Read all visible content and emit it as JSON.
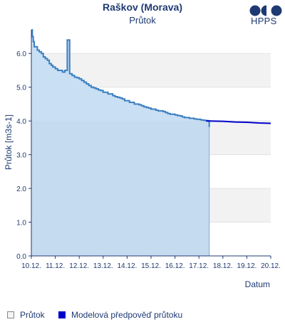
{
  "chart_data": {
    "type": "line",
    "title": "Raškov (Morava)",
    "subtitle": "Průtok",
    "brand": "HPPS",
    "xlabel": "Datum",
    "ylabel": "Průtok [m3s-1]",
    "ylim": [
      0,
      6.7
    ],
    "yticks": [
      "0.0",
      "1.0",
      "2.0",
      "3.0",
      "4.0",
      "5.0",
      "6.0"
    ],
    "xticks": [
      "10.12.",
      "11.12.",
      "12.12.",
      "13.12.",
      "14.12.",
      "15.12.",
      "16.12.",
      "17.12.",
      "18.12.",
      "19.12.",
      "20.12."
    ],
    "xlim": [
      0,
      10
    ],
    "grid": true,
    "legend_position": "bottom",
    "colors": {
      "observed_line": "#3a7fc0",
      "observed_fill": "#c6ddf2",
      "forecast": "#0000cc",
      "text": "#1f3a73",
      "band": "#f2f2f2"
    },
    "series": [
      {
        "name": "Průtok",
        "x": [
          0.0,
          0.04,
          0.08,
          0.12,
          0.17,
          0.25,
          0.33,
          0.42,
          0.5,
          0.58,
          0.67,
          0.75,
          0.83,
          0.9,
          1.0,
          1.1,
          1.2,
          1.3,
          1.4,
          1.5,
          1.6,
          1.7,
          1.8,
          1.9,
          2.0,
          2.1,
          2.2,
          2.3,
          2.4,
          2.5,
          2.6,
          2.7,
          2.8,
          2.9,
          3.0,
          3.1,
          3.2,
          3.3,
          3.4,
          3.5,
          3.6,
          3.7,
          3.8,
          3.9,
          4.0,
          4.1,
          4.2,
          4.3,
          4.4,
          4.5,
          4.6,
          4.7,
          4.8,
          4.9,
          5.0,
          5.1,
          5.2,
          5.3,
          5.4,
          5.5,
          5.6,
          5.7,
          5.8,
          5.9,
          6.0,
          6.1,
          6.2,
          6.3,
          6.4,
          6.5,
          6.6,
          6.7,
          6.8,
          6.9,
          7.0,
          7.05,
          7.1,
          7.15,
          7.2,
          7.25,
          7.3,
          7.35,
          7.39,
          7.43
        ],
        "values": [
          6.7,
          6.5,
          6.35,
          6.2,
          6.2,
          6.1,
          6.05,
          6.0,
          5.9,
          5.85,
          5.8,
          5.7,
          5.65,
          5.6,
          5.55,
          5.5,
          5.5,
          5.45,
          5.5,
          6.4,
          5.4,
          5.35,
          5.3,
          5.28,
          5.25,
          5.2,
          5.15,
          5.1,
          5.05,
          5.0,
          4.98,
          4.95,
          4.92,
          4.9,
          4.85,
          4.85,
          4.8,
          4.8,
          4.75,
          4.72,
          4.7,
          4.68,
          4.65,
          4.6,
          4.6,
          4.55,
          4.55,
          4.5,
          4.5,
          4.48,
          4.45,
          4.42,
          4.4,
          4.38,
          4.35,
          4.35,
          4.32,
          4.3,
          4.3,
          4.28,
          4.25,
          4.22,
          4.2,
          4.2,
          4.18,
          4.16,
          4.15,
          4.12,
          4.1,
          4.1,
          4.08,
          4.08,
          4.06,
          4.05,
          4.05,
          4.04,
          4.03,
          4.03,
          4.02,
          4.02,
          4.01,
          4.01,
          4.0,
          3.82
        ]
      },
      {
        "name": "Modelová předpověď průtoku",
        "x": [
          7.3,
          8.0,
          8.5,
          9.0,
          9.5,
          10.0
        ],
        "values": [
          4.0,
          3.99,
          3.97,
          3.96,
          3.94,
          3.93
        ]
      }
    ]
  }
}
